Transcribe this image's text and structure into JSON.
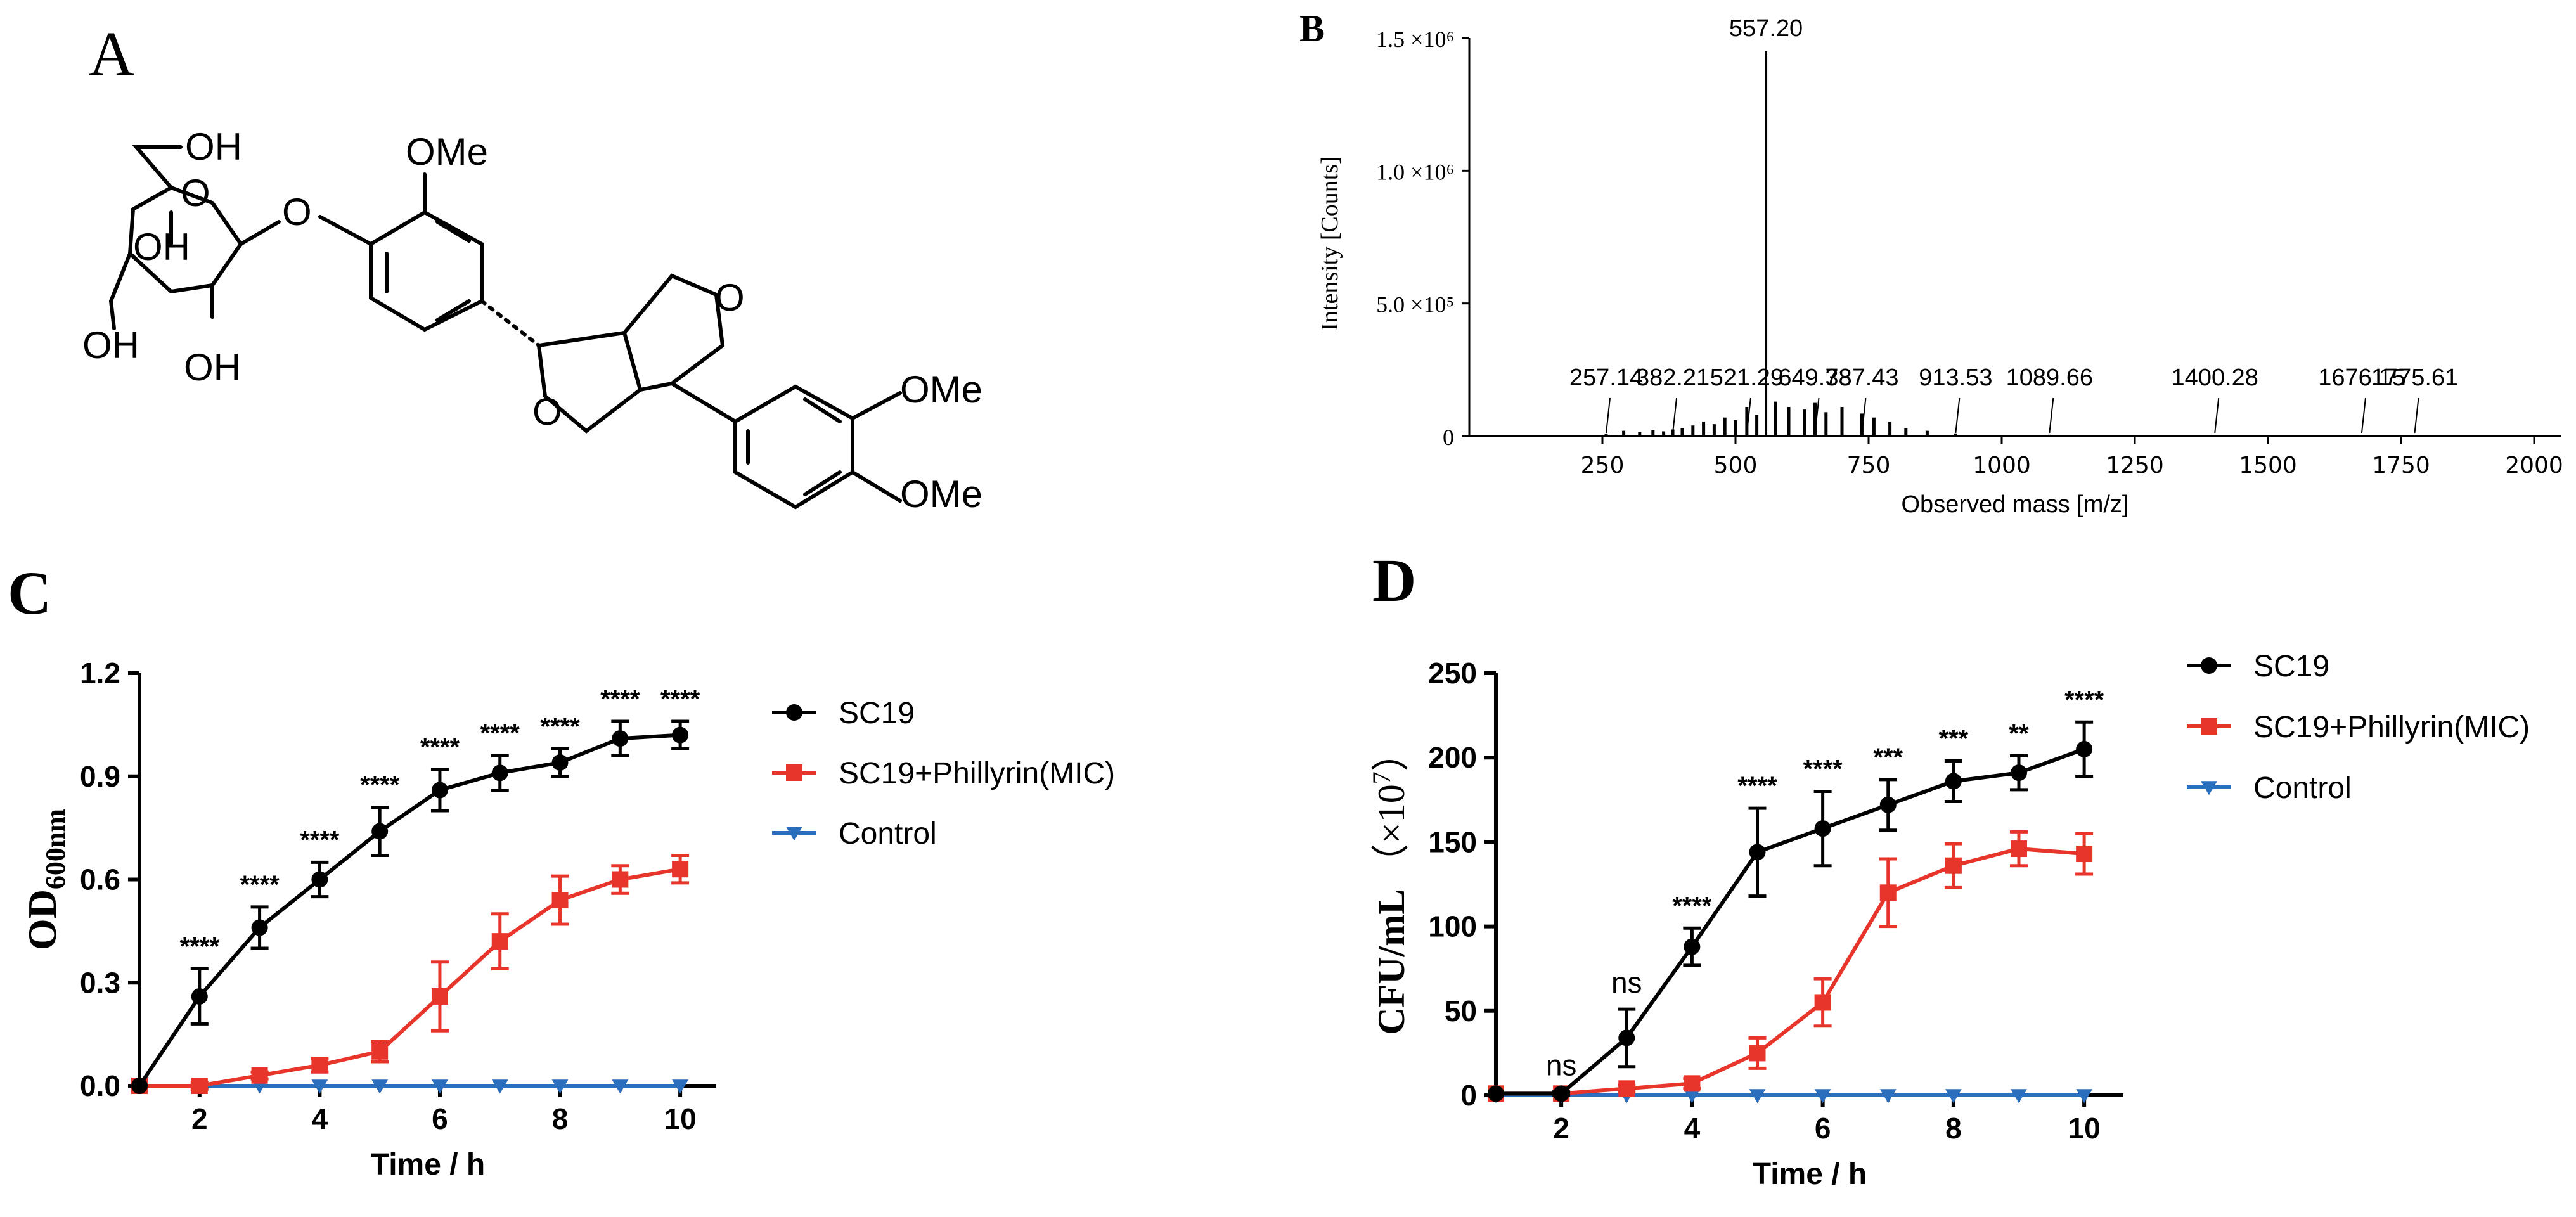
{
  "panel_labels": {
    "a": "A",
    "b": "B",
    "c": "C",
    "d": "D"
  },
  "structure": {
    "labels": {
      "oh1": "OH",
      "oh2": "OH",
      "oh3": "OH",
      "oh4": "OH",
      "ome1": "OMe",
      "ome2": "OMe",
      "ome3": "OMe",
      "o_glyco": "O",
      "o_link": "O",
      "o_ring1": "O",
      "o_ring2": "O"
    }
  },
  "colors": {
    "black": "#000000",
    "red": "#e8352b",
    "blue": "#2a6ebe"
  },
  "chart_data": [
    {
      "id": "B",
      "type": "line",
      "subtype": "mass-spectrum",
      "xlabel": "Observed mass [m/z]",
      "ylabel": "Intensity [Counts]",
      "xlim": [
        0,
        2050
      ],
      "ylim": [
        0,
        1500000
      ],
      "xticks": [
        250,
        500,
        750,
        1000,
        1250,
        1500,
        1750,
        2000
      ],
      "xtick_labels": [
        "250",
        "500",
        "750",
        "1000",
        "1250",
        "1500",
        "1750",
        "2000"
      ],
      "yticks": [
        0,
        500000,
        1000000,
        1500000
      ],
      "ytick_labels": [
        "0",
        "5.0 ×10⁵",
        "1.0 ×10⁶",
        "1.5 ×10⁶"
      ],
      "peaks": [
        {
          "mz": 257.14,
          "intensity": 8000
        },
        {
          "mz": 290,
          "intensity": 20000
        },
        {
          "mz": 320,
          "intensity": 15000
        },
        {
          "mz": 345,
          "intensity": 22000
        },
        {
          "mz": 365,
          "intensity": 18000
        },
        {
          "mz": 382.21,
          "intensity": 25000
        },
        {
          "mz": 400,
          "intensity": 30000
        },
        {
          "mz": 420,
          "intensity": 40000
        },
        {
          "mz": 440,
          "intensity": 55000
        },
        {
          "mz": 460,
          "intensity": 45000
        },
        {
          "mz": 480,
          "intensity": 70000
        },
        {
          "mz": 500,
          "intensity": 60000
        },
        {
          "mz": 521.29,
          "intensity": 110000
        },
        {
          "mz": 540,
          "intensity": 80000
        },
        {
          "mz": 557.2,
          "intensity": 1450000
        },
        {
          "mz": 575,
          "intensity": 130000
        },
        {
          "mz": 600,
          "intensity": 110000
        },
        {
          "mz": 630,
          "intensity": 100000
        },
        {
          "mz": 649.38,
          "intensity": 125000
        },
        {
          "mz": 670,
          "intensity": 90000
        },
        {
          "mz": 700,
          "intensity": 110000
        },
        {
          "mz": 737.43,
          "intensity": 85000
        },
        {
          "mz": 760,
          "intensity": 70000
        },
        {
          "mz": 790,
          "intensity": 55000
        },
        {
          "mz": 820,
          "intensity": 30000
        },
        {
          "mz": 860,
          "intensity": 20000
        },
        {
          "mz": 913.53,
          "intensity": 10000
        },
        {
          "mz": 1089.66,
          "intensity": 5000
        },
        {
          "mz": 1400.28,
          "intensity": 3000
        },
        {
          "mz": 1676.15,
          "intensity": 3000
        },
        {
          "mz": 1775.61,
          "intensity": 3000
        }
      ],
      "annotations": [
        {
          "mz": 557.2,
          "label": "557.20"
        },
        {
          "mz": 257.14,
          "label": "257.14"
        },
        {
          "mz": 382.21,
          "label": "382.21"
        },
        {
          "mz": 521.29,
          "label": "521.29"
        },
        {
          "mz": 649.38,
          "label": "649.38"
        },
        {
          "mz": 737.43,
          "label": "737.43"
        },
        {
          "mz": 913.53,
          "label": "913.53"
        },
        {
          "mz": 1089.66,
          "label": "1089.66"
        },
        {
          "mz": 1400.28,
          "label": "1400.28"
        },
        {
          "mz": 1676.15,
          "label": "1676.15"
        },
        {
          "mz": 1775.61,
          "label": "1775.61"
        }
      ]
    },
    {
      "id": "C",
      "type": "line",
      "xlabel": "Time / h",
      "ylabel_main": "OD",
      "ylabel_sub": "600nm",
      "xlim": [
        1,
        10.6
      ],
      "ylim": [
        0,
        1.2
      ],
      "xticks": [
        2,
        4,
        6,
        8,
        10
      ],
      "xtick_labels": [
        "2",
        "4",
        "6",
        "8",
        "10"
      ],
      "yticks": [
        0,
        0.3,
        0.6,
        0.9,
        1.2
      ],
      "ytick_labels": [
        "0.0",
        "0.3",
        "0.6",
        "0.9",
        "1.2"
      ],
      "legend": "right",
      "series": [
        {
          "name": "SC19",
          "color": "#000000",
          "marker": "circle",
          "x": [
            1,
            2,
            3,
            4,
            5,
            6,
            7,
            8,
            9,
            10
          ],
          "y": [
            0,
            0.26,
            0.46,
            0.6,
            0.74,
            0.86,
            0.91,
            0.94,
            1.01,
            1.02
          ],
          "err": [
            0,
            0.08,
            0.06,
            0.05,
            0.07,
            0.06,
            0.05,
            0.04,
            0.05,
            0.04
          ]
        },
        {
          "name": "SC19+Phillyrin(MIC)",
          "color": "#e8352b",
          "marker": "square",
          "x": [
            1,
            2,
            3,
            4,
            5,
            6,
            7,
            8,
            9,
            10
          ],
          "y": [
            0,
            0,
            0.03,
            0.06,
            0.1,
            0.26,
            0.42,
            0.54,
            0.6,
            0.63
          ],
          "err": [
            0,
            0.01,
            0.01,
            0.02,
            0.03,
            0.1,
            0.08,
            0.07,
            0.04,
            0.04
          ]
        },
        {
          "name": "Control",
          "color": "#2a6ebe",
          "marker": "triangle-down",
          "x": [
            1,
            2,
            3,
            4,
            5,
            6,
            7,
            8,
            9,
            10
          ],
          "y": [
            0,
            0,
            0,
            0,
            0,
            0,
            0,
            0,
            0,
            0
          ],
          "err": [
            0,
            0,
            0,
            0,
            0,
            0,
            0,
            0,
            0,
            0
          ]
        }
      ],
      "significance": [
        {
          "x": 2,
          "label": "****"
        },
        {
          "x": 3,
          "label": "****"
        },
        {
          "x": 4,
          "label": "****"
        },
        {
          "x": 5,
          "label": "****"
        },
        {
          "x": 6,
          "label": "****"
        },
        {
          "x": 7,
          "label": "****"
        },
        {
          "x": 8,
          "label": "****"
        },
        {
          "x": 9,
          "label": "****"
        },
        {
          "x": 10,
          "label": "****"
        }
      ]
    },
    {
      "id": "D",
      "type": "line",
      "xlabel": "Time / h",
      "ylabel_main": "CFU/mL",
      "ylabel_unit": "（×10",
      "ylabel_exp": "7",
      "ylabel_close": "）",
      "xlim": [
        1,
        10.6
      ],
      "ylim": [
        0,
        250
      ],
      "xticks": [
        2,
        4,
        6,
        8,
        10
      ],
      "xtick_labels": [
        "2",
        "4",
        "6",
        "8",
        "10"
      ],
      "yticks": [
        0,
        50,
        100,
        150,
        200,
        250
      ],
      "ytick_labels": [
        "0",
        "50",
        "100",
        "150",
        "200",
        "250"
      ],
      "legend": "top-right",
      "series": [
        {
          "name": "SC19",
          "color": "#000000",
          "marker": "circle",
          "x": [
            1,
            2,
            3,
            4,
            5,
            6,
            7,
            8,
            9,
            10
          ],
          "y": [
            1,
            1,
            34,
            88,
            144,
            158,
            172,
            186,
            191,
            205
          ],
          "err": [
            0,
            1,
            17,
            11,
            26,
            22,
            15,
            12,
            10,
            16
          ]
        },
        {
          "name": "SC19+Phillyrin(MIC)",
          "color": "#e8352b",
          "marker": "square",
          "x": [
            1,
            2,
            3,
            4,
            5,
            6,
            7,
            8,
            9,
            10
          ],
          "y": [
            1,
            1,
            4,
            7,
            25,
            55,
            120,
            136,
            146,
            143
          ],
          "err": [
            0,
            0.5,
            2,
            3,
            9,
            14,
            20,
            13,
            10,
            12
          ]
        },
        {
          "name": "Control",
          "color": "#2a6ebe",
          "marker": "triangle-down",
          "x": [
            1,
            2,
            3,
            4,
            5,
            6,
            7,
            8,
            9,
            10
          ],
          "y": [
            0,
            0,
            0,
            0,
            0,
            0,
            0,
            0,
            0,
            0
          ],
          "err": [
            0,
            0,
            0,
            0,
            0,
            0,
            0,
            0,
            0,
            0
          ]
        }
      ],
      "significance": [
        {
          "x": 2,
          "label": "ns"
        },
        {
          "x": 3,
          "label": "ns"
        },
        {
          "x": 4,
          "label": "****"
        },
        {
          "x": 5,
          "label": "****"
        },
        {
          "x": 6,
          "label": "****"
        },
        {
          "x": 7,
          "label": "***"
        },
        {
          "x": 8,
          "label": "***"
        },
        {
          "x": 9,
          "label": "**"
        },
        {
          "x": 10,
          "label": "****"
        }
      ]
    }
  ]
}
